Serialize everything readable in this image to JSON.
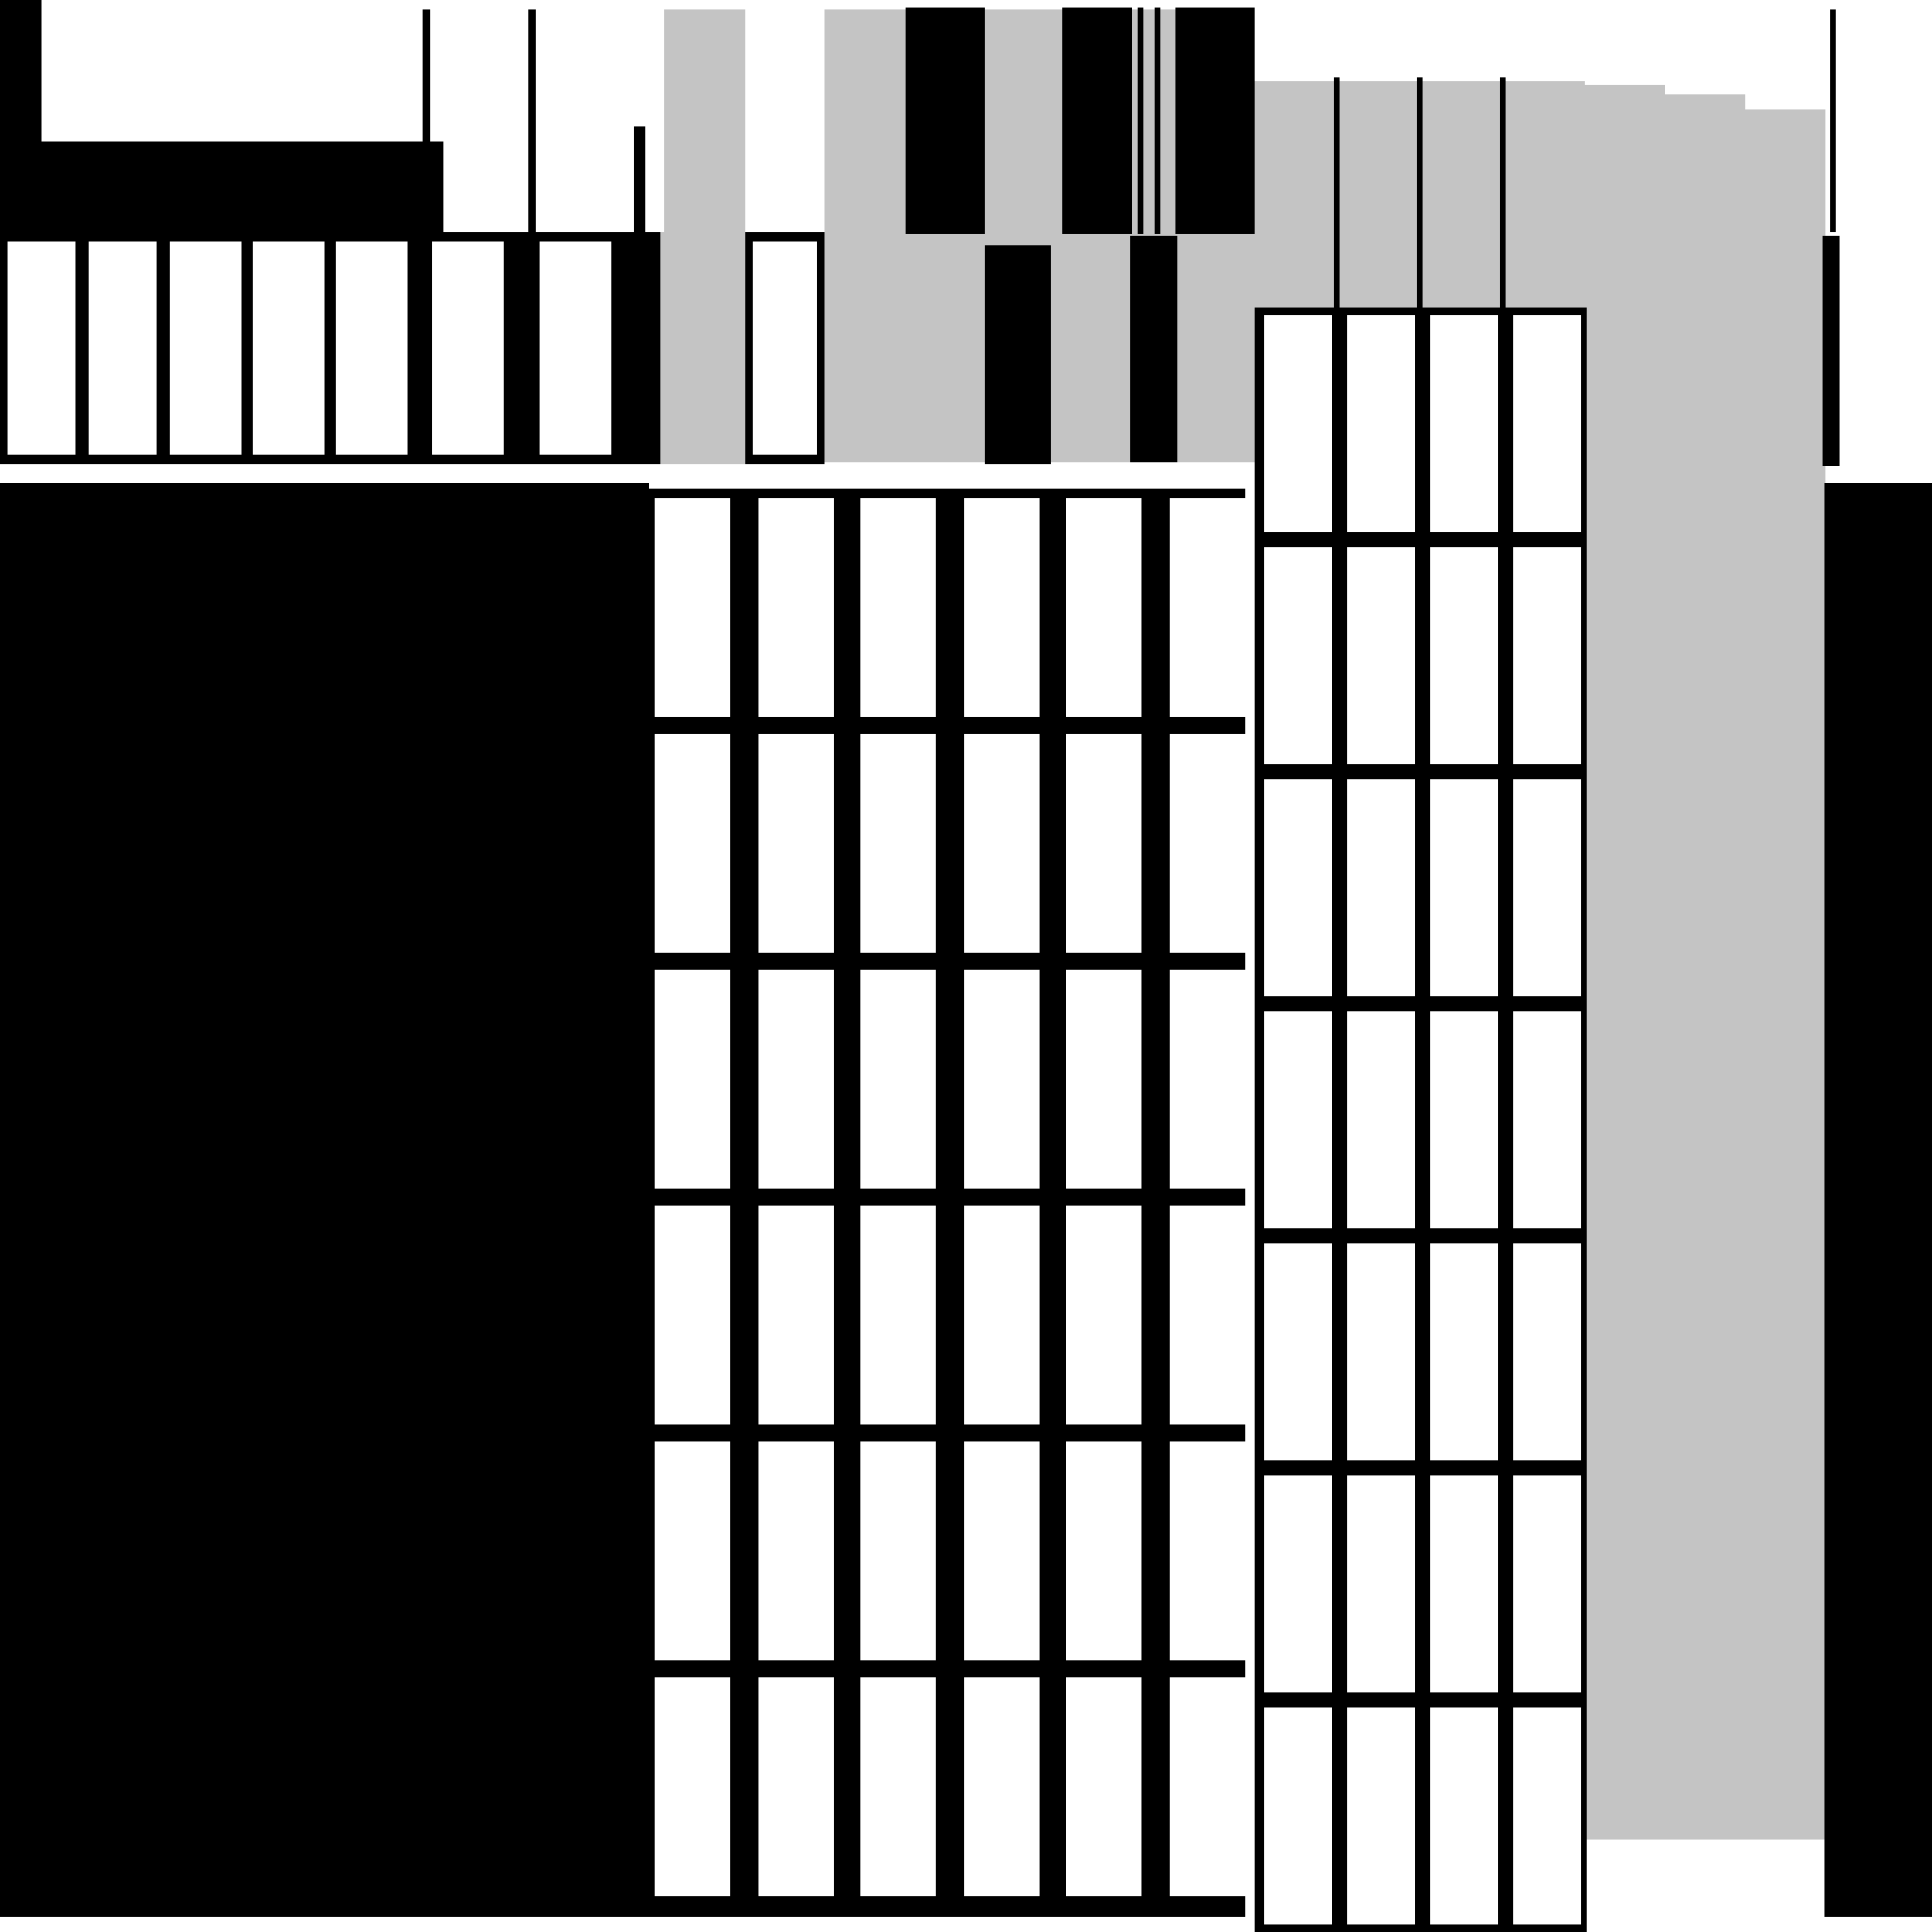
{
  "palette": {
    "background": "#ffffff",
    "black": "#000000",
    "gray": "#c4c4c4",
    "white": "#ffffff"
  }
}
